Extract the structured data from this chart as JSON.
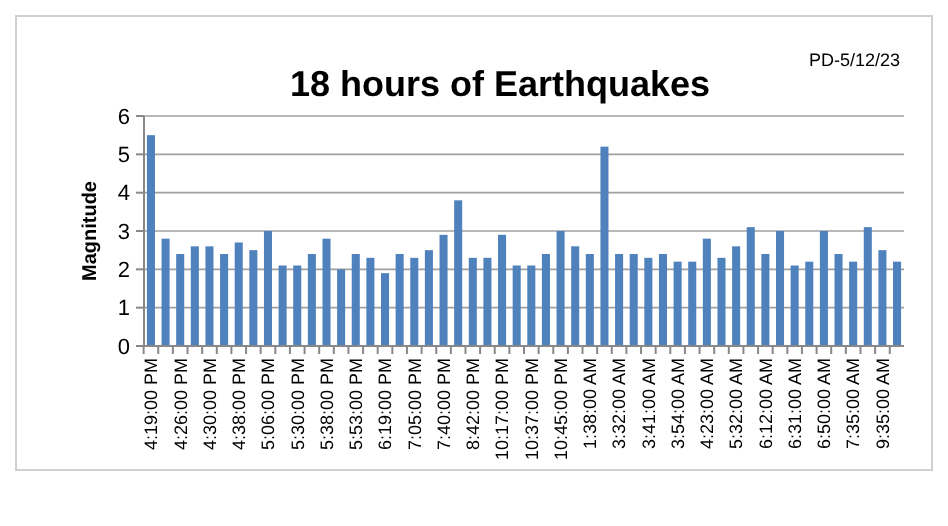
{
  "chart_data": {
    "type": "bar",
    "title": "18 hours of Earthquakes",
    "ylabel": "Magnitude",
    "annotations": [
      "PD-5/12/23"
    ],
    "categories": [
      "4:19:00 PM",
      null,
      "4:26:00 PM",
      null,
      "4:30:00 PM",
      null,
      "4:38:00 PM",
      null,
      "5:06:00 PM",
      null,
      "5:30:00 PM",
      null,
      "5:38:00 PM",
      null,
      "5:53:00 PM",
      null,
      "6:19:00 PM",
      null,
      "7:05:00 PM",
      null,
      "7:40:00 PM",
      null,
      "8:42:00 PM",
      null,
      "10:17:00 PM",
      null,
      "10:37:00 PM",
      null,
      "10:45:00 PM",
      null,
      "1:38:00 AM",
      null,
      "3:32:00 AM",
      null,
      "3:41:00 AM",
      null,
      "3:54:00 AM",
      null,
      "4:23:00 AM",
      null,
      "5:32:00 AM",
      null,
      "6:12:00 AM",
      null,
      "6:31:00 AM",
      null,
      "6:50:00 AM",
      null,
      "7:35:00 AM",
      null,
      "9:35:00 AM",
      null
    ],
    "values": [
      5.5,
      2.8,
      2.4,
      2.6,
      2.6,
      2.4,
      2.7,
      2.5,
      3.0,
      2.1,
      2.1,
      2.4,
      2.8,
      2.0,
      2.4,
      2.3,
      1.9,
      2.4,
      2.3,
      2.5,
      2.9,
      3.8,
      2.3,
      2.3,
      2.9,
      2.1,
      2.1,
      2.4,
      3.0,
      2.6,
      2.4,
      5.2,
      2.4,
      2.4,
      2.3,
      2.4,
      2.2,
      2.2,
      2.8,
      2.3,
      2.6,
      3.1,
      2.4,
      3.0,
      2.1,
      2.2,
      3.0,
      2.4,
      2.2,
      3.1,
      2.5,
      2.2
    ],
    "color": "#4f81bd",
    "ylim": [
      0,
      6
    ],
    "yticks": [
      0,
      1,
      2,
      3,
      4,
      5,
      6
    ],
    "grid": "y"
  }
}
